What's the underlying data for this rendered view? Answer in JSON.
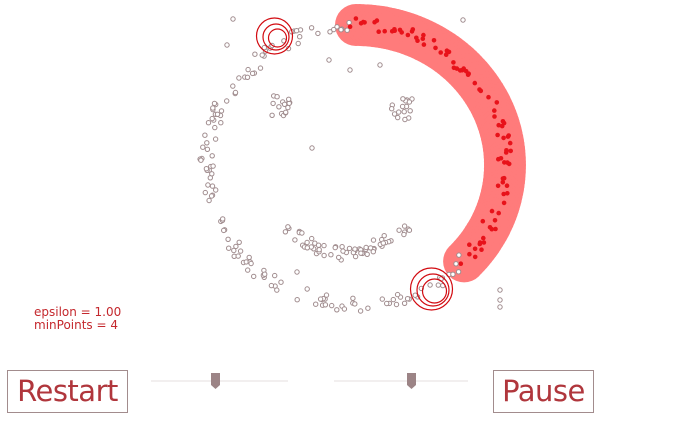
{
  "params": {
    "epsilon_text": "epsilon = 1.00",
    "minpoints_text": "minPoints = 4"
  },
  "controls": {
    "restart_label": "Restart",
    "pause_label": "Pause",
    "epsilon_slider_value": 0.47,
    "minpoints_slider_value": 0.58
  },
  "colors": {
    "unvisited": "#a08c8e",
    "cluster": "#e8121a",
    "halo": "#ff7b7b",
    "ring": "#d20a10"
  }
}
